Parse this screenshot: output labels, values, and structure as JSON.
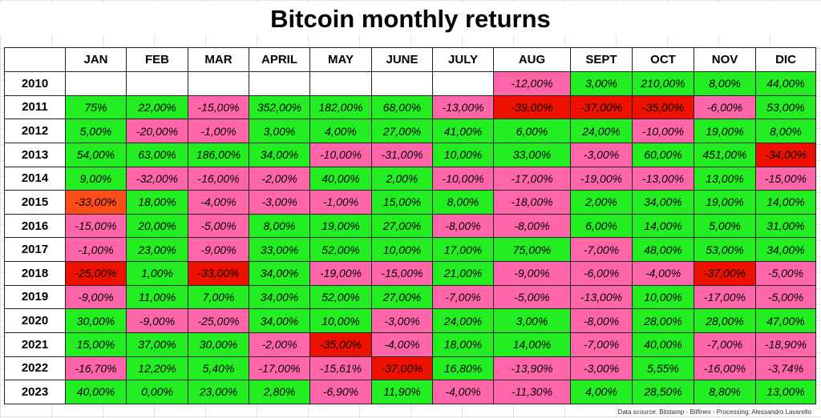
{
  "chart_data": {
    "type": "table",
    "title": "Bitcoin monthly returns",
    "columns": [
      "JAN",
      "FEB",
      "MAR",
      "APRIL",
      "MAY",
      "JUNE",
      "JULY",
      "AUG",
      "SEPT",
      "OCT",
      "NOV",
      "DIC"
    ],
    "rows": [
      {
        "year": "2010",
        "values": [
          "",
          "",
          "",
          "",
          "",
          "",
          "",
          "-12,00%",
          "3,00%",
          "210,00%",
          "8,00%",
          "44,00%"
        ],
        "colors": [
          "e",
          "e",
          "e",
          "e",
          "e",
          "e",
          "e",
          "p",
          "g",
          "g",
          "g",
          "g"
        ]
      },
      {
        "year": "2011",
        "values": [
          "75%",
          "22,00%",
          "-15,00%",
          "352,00%",
          "182,00%",
          "68,00%",
          "-13,00%",
          "-39,00%",
          "-37,00%",
          "-35,00%",
          "-6,00%",
          "53,00%"
        ],
        "colors": [
          "g",
          "g",
          "p",
          "g",
          "g",
          "g",
          "p",
          "r",
          "r",
          "r",
          "p",
          "g"
        ]
      },
      {
        "year": "2012",
        "values": [
          "5,00%",
          "-20,00%",
          "-1,00%",
          "3,00%",
          "4,00%",
          "27,00%",
          "41,00%",
          "6,00%",
          "24,00%",
          "-10,00%",
          "19,00%",
          "8,00%"
        ],
        "colors": [
          "g",
          "p",
          "p",
          "g",
          "g",
          "g",
          "g",
          "g",
          "g",
          "p",
          "g",
          "g"
        ]
      },
      {
        "year": "2013",
        "values": [
          "54,00%",
          "63,00%",
          "186,00%",
          "34,00%",
          "-10,00%",
          "-31,00%",
          "10,00%",
          "33,00%",
          "-3,00%",
          "60,00%",
          "451,00%",
          "-34,00%"
        ],
        "colors": [
          "g",
          "g",
          "g",
          "g",
          "p",
          "p",
          "g",
          "g",
          "p",
          "g",
          "g",
          "r"
        ]
      },
      {
        "year": "2014",
        "values": [
          "9,00%",
          "-32,00%",
          "-16,00%",
          "-2,00%",
          "40,00%",
          "2,00%",
          "-10,00%",
          "-17,00%",
          "-19,00%",
          "-13,00%",
          "13,00%",
          "-15,00%"
        ],
        "colors": [
          "g",
          "p",
          "p",
          "p",
          "g",
          "g",
          "p",
          "p",
          "p",
          "p",
          "g",
          "p"
        ]
      },
      {
        "year": "2015",
        "values": [
          "-33,00%",
          "18,00%",
          "-4,00%",
          "-3,00%",
          "-1,00%",
          "15,00%",
          "8,00%",
          "-18,00%",
          "2,00%",
          "34,00%",
          "19,00%",
          "14,00%"
        ],
        "colors": [
          "o",
          "g",
          "p",
          "p",
          "p",
          "g",
          "g",
          "p",
          "g",
          "g",
          "g",
          "g"
        ]
      },
      {
        "year": "2016",
        "values": [
          "-15,00%",
          "20,00%",
          "-5,00%",
          "8,00%",
          "19,00%",
          "27,00%",
          "-8,00%",
          "-8,00%",
          "6,00%",
          "14,00%",
          "5,00%",
          "31,00%"
        ],
        "colors": [
          "p",
          "g",
          "p",
          "g",
          "g",
          "g",
          "p",
          "p",
          "g",
          "g",
          "g",
          "g"
        ]
      },
      {
        "year": "2017",
        "values": [
          "-1,00%",
          "23,00%",
          "-9,00%",
          "33,00%",
          "52,00%",
          "10,00%",
          "17,00%",
          "75,00%",
          "-7,00%",
          "48,00%",
          "53,00%",
          "34,00%"
        ],
        "colors": [
          "p",
          "g",
          "p",
          "g",
          "g",
          "g",
          "g",
          "g",
          "p",
          "g",
          "g",
          "g"
        ]
      },
      {
        "year": "2018",
        "values": [
          "-25,00%",
          "1,00%",
          "-33,00%",
          "34,00%",
          "-19,00%",
          "-15,00%",
          "21,00%",
          "-9,00%",
          "-6,00%",
          "-4,00%",
          "-37,00%",
          "-5,00%"
        ],
        "colors": [
          "r",
          "g",
          "r",
          "g",
          "p",
          "p",
          "g",
          "p",
          "p",
          "p",
          "r",
          "p"
        ]
      },
      {
        "year": "2019",
        "values": [
          "-9,00%",
          "11,00%",
          "7,00%",
          "34,00%",
          "52,00%",
          "27,00%",
          "-7,00%",
          "-5,00%",
          "-13,00%",
          "10,00%",
          "-17,00%",
          "-5,00%"
        ],
        "colors": [
          "p",
          "g",
          "g",
          "g",
          "g",
          "g",
          "p",
          "p",
          "p",
          "g",
          "p",
          "p"
        ]
      },
      {
        "year": "2020",
        "values": [
          "30,00%",
          "-9,00%",
          "-25,00%",
          "34,00%",
          "10,00%",
          "-3,00%",
          "24,00%",
          "3,00%",
          "-8,00%",
          "28,00%",
          "28,00%",
          "47,00%"
        ],
        "colors": [
          "g",
          "p",
          "p",
          "g",
          "g",
          "p",
          "g",
          "g",
          "p",
          "g",
          "g",
          "g"
        ]
      },
      {
        "year": "2021",
        "values": [
          "15,00%",
          "37,00%",
          "30,00%",
          "-2,00%",
          "-35,00%",
          "-4,00%",
          "18,00%",
          "14,00%",
          "-7,00%",
          "40,00%",
          "-7,00%",
          "-18,90%"
        ],
        "colors": [
          "g",
          "g",
          "g",
          "p",
          "r",
          "p",
          "g",
          "g",
          "p",
          "g",
          "p",
          "p"
        ]
      },
      {
        "year": "2022",
        "values": [
          "-16,70%",
          "12,20%",
          "5,40%",
          "-17,00%",
          "-15,61%",
          "-37,00%",
          "16,80%",
          "-13,90%",
          "-3,00%",
          "5,55%",
          "-16,00%",
          "-3,74%"
        ],
        "colors": [
          "p",
          "g",
          "g",
          "p",
          "p",
          "r",
          "g",
          "p",
          "p",
          "g",
          "p",
          "p"
        ]
      },
      {
        "year": "2023",
        "values": [
          "40,00%",
          "0,00%",
          "23,00%",
          "2,80%",
          "-6,90%",
          "11,90%",
          "-4,00%",
          "-11,30%",
          "4,00%",
          "28,50%",
          "8,80%",
          "13,00%"
        ],
        "colors": [
          "g",
          "g",
          "g",
          "g",
          "p",
          "g",
          "p",
          "p",
          "g",
          "g",
          "g",
          "g"
        ]
      }
    ],
    "source": "Data scource: Bitstamp - Bitfinex - Processing: Alessandro Lavarello",
    "palette": {
      "g": "#22ee22",
      "p": "#ff66aa",
      "r": "#ee1100",
      "o": "#ff4d1a",
      "e": "#ffffff"
    }
  }
}
